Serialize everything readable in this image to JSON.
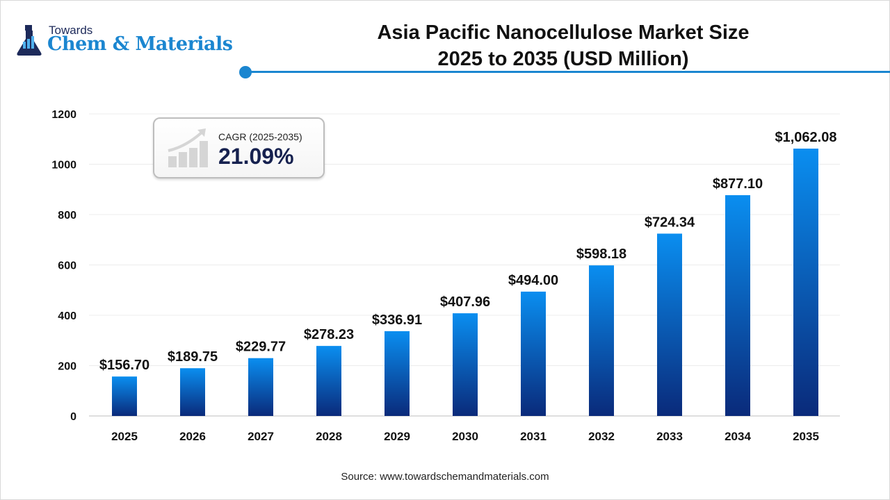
{
  "logo": {
    "line1": "Towards",
    "line2": "Chem & Materials"
  },
  "title_line1": "Asia Pacific Nanocellulose Market Size",
  "title_line2": "2025 to 2035 (USD Million)",
  "cagr": {
    "label": "CAGR (2025-2035)",
    "value": "21.09%",
    "icon": "growth-chart-icon"
  },
  "source": "Source: www.towardschemandmaterials.com",
  "colors": {
    "accent": "#1b86d0",
    "bar_top": "#0a8ef0",
    "bar_bottom": "#0a2a7a"
  },
  "chart_data": {
    "type": "bar",
    "categories": [
      "2025",
      "2026",
      "2027",
      "2028",
      "2029",
      "2030",
      "2031",
      "2032",
      "2033",
      "2034",
      "2035"
    ],
    "values": [
      156.7,
      189.75,
      229.77,
      278.23,
      336.91,
      407.96,
      494.0,
      598.18,
      724.34,
      877.1,
      1062.08
    ],
    "data_labels": [
      "$156.70",
      "$189.75",
      "$229.77",
      "$278.23",
      "$336.91",
      "$407.96",
      "$494.00",
      "$598.18",
      "$724.34",
      "$877.10",
      "$1,062.08"
    ],
    "ylim": [
      0,
      1200
    ],
    "yticks": [
      0,
      200,
      400,
      600,
      800,
      1000,
      1200
    ],
    "grid": true,
    "legend": "none"
  }
}
